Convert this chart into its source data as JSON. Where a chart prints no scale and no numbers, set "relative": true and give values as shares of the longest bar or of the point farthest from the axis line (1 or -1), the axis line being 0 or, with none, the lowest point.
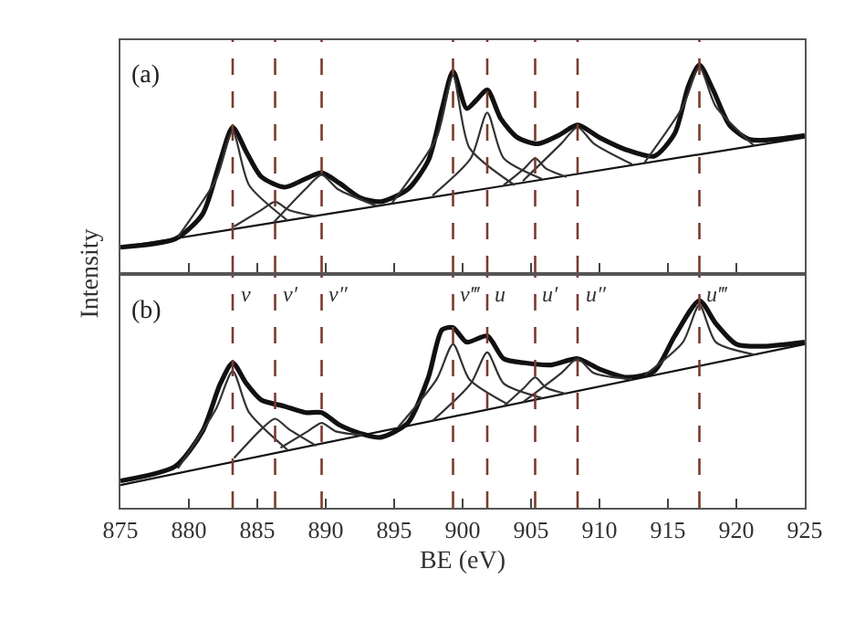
{
  "chart_data": [
    {
      "type": "line",
      "relative": true,
      "ylabel": "Intensity",
      "annotations": [
        "(a)"
      ],
      "xlim": [
        875,
        925
      ],
      "xticks": [
        875,
        880,
        885,
        890,
        895,
        900,
        905,
        910,
        915,
        920,
        925
      ],
      "tick_labels": false,
      "ref_lines": [
        {
          "axis": "x",
          "value": 883.2,
          "color": "#7a3b2e",
          "line_style": "dashed"
        },
        {
          "axis": "x",
          "value": 886.3,
          "color": "#7a3b2e",
          "line_style": "dashed"
        },
        {
          "axis": "x",
          "value": 889.7,
          "color": "#7a3b2e",
          "line_style": "dashed"
        },
        {
          "axis": "x",
          "value": 899.3,
          "color": "#7a3b2e",
          "line_style": "dashed"
        },
        {
          "axis": "x",
          "value": 901.8,
          "color": "#7a3b2e",
          "line_style": "dashed"
        },
        {
          "axis": "x",
          "value": 905.3,
          "color": "#7a3b2e",
          "line_style": "dashed"
        },
        {
          "axis": "x",
          "value": 908.4,
          "color": "#7a3b2e",
          "line_style": "dashed"
        },
        {
          "axis": "x",
          "value": 917.3,
          "color": "#7a3b2e",
          "line_style": "dashed"
        }
      ],
      "series": [
        {
          "color": "#111111",
          "x": [
            875,
            879,
            881,
            882.3,
            883.2,
            884.2,
            885.3,
            887,
            888.5,
            889.7,
            891,
            892.5,
            894,
            896,
            897.5,
            898.5,
            899.3,
            900.3,
            901,
            901.8,
            902.8,
            904,
            905.5,
            907,
            908.4,
            910,
            912,
            914,
            915.5,
            916.5,
            917.3,
            918.3,
            919.5,
            921,
            925
          ],
          "values": [
            0.12,
            0.16,
            0.28,
            0.54,
            0.7,
            0.58,
            0.46,
            0.41,
            0.45,
            0.48,
            0.43,
            0.36,
            0.34,
            0.4,
            0.54,
            0.79,
            0.97,
            0.79,
            0.83,
            0.88,
            0.74,
            0.65,
            0.62,
            0.66,
            0.71,
            0.65,
            0.59,
            0.56,
            0.67,
            0.9,
            1.0,
            0.88,
            0.71,
            0.64,
            0.66
          ]
        },
        {
          "color": "#111111",
          "x": [
            875,
            925
          ],
          "values": [
            0.12,
            0.65
          ]
        },
        {
          "color": "#333333",
          "x": [
            879.2,
            882.0,
            883.2,
            884.4,
            887.2
          ],
          "values": [
            0.17,
            0.45,
            0.68,
            0.42,
            0.25
          ]
        },
        {
          "color": "#333333",
          "x": [
            883.3,
            885.3,
            886.3,
            887.3,
            889.3
          ],
          "values": [
            0.22,
            0.3,
            0.34,
            0.3,
            0.27
          ]
        },
        {
          "color": "#333333",
          "x": [
            886.2,
            888.5,
            889.7,
            890.9,
            893.7
          ],
          "values": [
            0.24,
            0.4,
            0.47,
            0.4,
            0.32
          ]
        },
        {
          "color": "#333333",
          "x": [
            894.8,
            898.1,
            899.3,
            900.5,
            903.8
          ],
          "values": [
            0.33,
            0.65,
            0.95,
            0.6,
            0.42
          ]
        },
        {
          "color": "#333333",
          "x": [
            897.8,
            900.6,
            901.8,
            903.0,
            905.8
          ],
          "values": [
            0.37,
            0.55,
            0.77,
            0.55,
            0.45
          ]
        },
        {
          "color": "#333333",
          "x": [
            903.0,
            904.5,
            905.3,
            906.1,
            907.6
          ],
          "values": [
            0.42,
            0.5,
            0.55,
            0.5,
            0.46
          ]
        },
        {
          "color": "#333333",
          "x": [
            904.4,
            907.2,
            908.4,
            909.6,
            912.4
          ],
          "values": [
            0.44,
            0.62,
            0.7,
            0.62,
            0.52
          ]
        },
        {
          "color": "#333333",
          "x": [
            913.3,
            916.1,
            917.3,
            918.5,
            921.3
          ],
          "values": [
            0.53,
            0.8,
            0.99,
            0.8,
            0.61
          ]
        }
      ]
    },
    {
      "type": "line",
      "relative": true,
      "xlabel": "BE (eV)",
      "annotations": [
        "(b)"
      ],
      "xlim": [
        875,
        925
      ],
      "xticks": [
        875,
        880,
        885,
        890,
        895,
        900,
        905,
        910,
        915,
        920,
        925
      ],
      "tick_labels": "x",
      "ref_lines": [
        {
          "axis": "x",
          "value": 883.2,
          "label": "v",
          "color": "#7a3b2e",
          "line_style": "dashed"
        },
        {
          "axis": "x",
          "value": 886.3,
          "label": "v′",
          "color": "#7a3b2e",
          "line_style": "dashed"
        },
        {
          "axis": "x",
          "value": 889.7,
          "label": "v″",
          "color": "#7a3b2e",
          "line_style": "dashed"
        },
        {
          "axis": "x",
          "value": 899.3,
          "label": "v‴",
          "color": "#7a3b2e",
          "line_style": "dashed"
        },
        {
          "axis": "x",
          "value": 901.8,
          "label": "u",
          "color": "#7a3b2e",
          "line_style": "dashed"
        },
        {
          "axis": "x",
          "value": 905.3,
          "label": "u′",
          "color": "#7a3b2e",
          "line_style": "dashed"
        },
        {
          "axis": "x",
          "value": 908.4,
          "label": "u″",
          "color": "#7a3b2e",
          "line_style": "dashed"
        },
        {
          "axis": "x",
          "value": 917.3,
          "label": "u‴",
          "color": "#7a3b2e",
          "line_style": "dashed"
        }
      ],
      "series": [
        {
          "color": "#111111",
          "x": [
            875,
            879,
            881,
            882.3,
            883.2,
            884.2,
            885.3,
            887,
            888.5,
            889.7,
            891,
            892.5,
            894,
            896,
            897.5,
            898.5,
            899.3,
            900.3,
            901.8,
            903,
            904.5,
            906.5,
            908.4,
            910,
            912,
            914,
            915.5,
            917.3,
            918.5,
            920,
            922,
            925
          ],
          "values": [
            0.13,
            0.2,
            0.37,
            0.6,
            0.7,
            0.6,
            0.52,
            0.49,
            0.46,
            0.46,
            0.4,
            0.36,
            0.34,
            0.41,
            0.63,
            0.86,
            0.87,
            0.8,
            0.83,
            0.72,
            0.7,
            0.69,
            0.72,
            0.67,
            0.63,
            0.66,
            0.83,
            1.0,
            0.89,
            0.79,
            0.78,
            0.8
          ]
        },
        {
          "color": "#111111",
          "x": [
            875,
            925
          ],
          "values": [
            0.11,
            0.79
          ]
        },
        {
          "color": "#333333",
          "x": [
            879.2,
            882.0,
            883.2,
            884.4,
            887.2
          ],
          "values": [
            0.19,
            0.48,
            0.66,
            0.46,
            0.28
          ]
        },
        {
          "color": "#333333",
          "x": [
            883.3,
            885.3,
            886.3,
            887.3,
            889.3
          ],
          "values": [
            0.24,
            0.38,
            0.43,
            0.38,
            0.3
          ]
        },
        {
          "color": "#333333",
          "x": [
            886.7,
            888.7,
            889.7,
            890.7,
            892.7
          ],
          "values": [
            0.29,
            0.37,
            0.41,
            0.37,
            0.35
          ]
        },
        {
          "color": "#333333",
          "x": [
            895.3,
            898.1,
            899.3,
            900.5,
            903.3
          ],
          "values": [
            0.39,
            0.62,
            0.79,
            0.62,
            0.5
          ]
        },
        {
          "color": "#333333",
          "x": [
            897.8,
            900.6,
            901.8,
            903.0,
            905.8
          ],
          "values": [
            0.42,
            0.6,
            0.75,
            0.6,
            0.53
          ]
        },
        {
          "color": "#333333",
          "x": [
            903.0,
            904.5,
            905.3,
            906.1,
            907.6
          ],
          "values": [
            0.49,
            0.58,
            0.63,
            0.58,
            0.55
          ]
        },
        {
          "color": "#333333",
          "x": [
            904.4,
            907.2,
            908.4,
            909.6,
            912.4
          ],
          "values": [
            0.51,
            0.65,
            0.72,
            0.65,
            0.62
          ]
        },
        {
          "color": "#333333",
          "x": [
            913.3,
            916.1,
            917.3,
            918.5,
            921.3
          ],
          "values": [
            0.64,
            0.8,
            0.98,
            0.8,
            0.74
          ]
        }
      ]
    }
  ]
}
